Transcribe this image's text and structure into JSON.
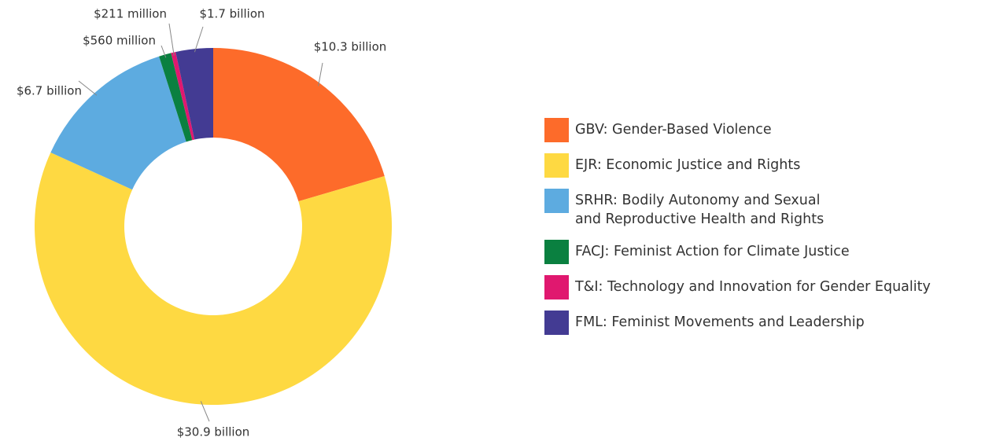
{
  "chart_data": {
    "type": "donut",
    "categories": [
      "GBV: Gender-Based Violence",
      "EJR: Economic Justice and Rights",
      "SRHR: Bodily Autonomy and Sexual\nand Reproductive Health and Rights",
      "FACJ: Feminist Action for Climate Justice",
      "T&I: Technology and Innovation for Gender Equality",
      "FML: Feminist Movements and Leadership"
    ],
    "values": [
      10.3,
      30.9,
      6.7,
      0.56,
      0.211,
      1.7
    ],
    "value_labels": [
      "$10.3 billion",
      "$30.9 billion",
      "$6.7 billion",
      "$560 million",
      "$211 million",
      "$1.7 billion"
    ],
    "colors": [
      "#fd6b2a",
      "#fed942",
      "#5dabe0",
      "#0a8040",
      "#e0186f",
      "#433b93"
    ],
    "legend": "right"
  }
}
